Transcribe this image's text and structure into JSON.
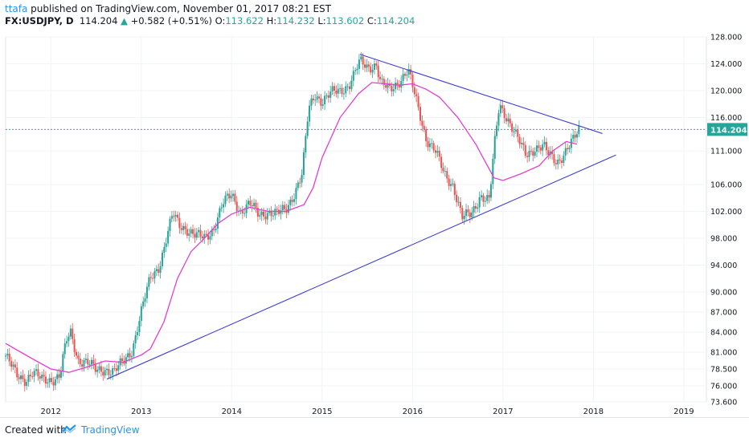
{
  "header": {
    "user": "ttafa",
    "published": "published on TradingView.com, November 01, 2017 08:21 EST",
    "symbol": "FX:USDJPY, D",
    "last": "114.204",
    "change_arrow": "▲",
    "change": "+0.582 (+0.51%)",
    "o_label": "O:",
    "o_value": "113.622",
    "h_label": "H:",
    "h_value": "114.232",
    "l_label": "L:",
    "l_value": "113.602",
    "c_label": "C:",
    "c_value": "114.204"
  },
  "footer": {
    "created": "Created with",
    "brand": "TradingView",
    "logo_icon": "tradingview-logo-icon"
  },
  "chart_data": {
    "type": "line",
    "title": "",
    "xlabel": "",
    "ylabel": "",
    "x_ticks": [
      "2012",
      "2013",
      "2014",
      "2015",
      "2016",
      "2017",
      "2018",
      "2019"
    ],
    "y_ticks": [
      "128.000",
      "124.000",
      "120.000",
      "116.000",
      "111.000",
      "106.000",
      "102.000",
      "98.000",
      "94.000",
      "90.000",
      "87.000",
      "84.000",
      "81.000",
      "78.500",
      "76.000",
      "73.600"
    ],
    "ylim": [
      73.6,
      128
    ],
    "xlim": [
      2011.5,
      2019.25
    ],
    "current_price_label": "114.204",
    "current_price": 114.204,
    "colors": {
      "up": "#26a69a",
      "down": "#ef5350",
      "ma": "#e040d0",
      "trend": "#3f3fcf",
      "price_line": "#26a69a"
    },
    "price_series": {
      "name": "",
      "x": [
        2011.5,
        2011.62,
        2011.72,
        2011.8,
        2011.9,
        2012.0,
        2012.1,
        2012.17,
        2012.22,
        2012.3,
        2012.4,
        2012.5,
        2012.6,
        2012.7,
        2012.8,
        2012.9,
        2013.0,
        2013.1,
        2013.2,
        2013.28,
        2013.35,
        2013.42,
        2013.5,
        2013.6,
        2013.7,
        2013.8,
        2013.9,
        2014.0,
        2014.1,
        2014.2,
        2014.3,
        2014.4,
        2014.5,
        2014.6,
        2014.7,
        2014.78,
        2014.85,
        2014.92,
        2015.0,
        2015.1,
        2015.2,
        2015.3,
        2015.42,
        2015.5,
        2015.6,
        2015.65,
        2015.75,
        2015.85,
        2015.95,
        2016.05,
        2016.15,
        2016.25,
        2016.35,
        2016.45,
        2016.55,
        2016.65,
        2016.75,
        2016.85,
        2016.9,
        2016.96,
        2017.05,
        2017.15,
        2017.25,
        2017.35,
        2017.45,
        2017.5,
        2017.6,
        2017.7,
        2017.78,
        2017.84
      ],
      "y": [
        80.5,
        77.5,
        77.0,
        78.0,
        76.8,
        77.0,
        77.5,
        82.5,
        83.8,
        80.0,
        79.5,
        78.2,
        78.6,
        78.0,
        79.5,
        81.5,
        87.0,
        92.0,
        94.0,
        98.0,
        101.5,
        100.0,
        99.5,
        98.3,
        98.0,
        99.5,
        103.0,
        104.5,
        102.0,
        103.0,
        101.5,
        102.0,
        101.5,
        102.3,
        105.0,
        107.5,
        117.0,
        119.5,
        118.5,
        119.5,
        120.0,
        121.0,
        124.2,
        123.5,
        124.0,
        121.0,
        120.0,
        121.5,
        123.0,
        118.0,
        113.0,
        111.0,
        107.5,
        106.0,
        101.0,
        101.5,
        104.5,
        103.5,
        111.0,
        118.0,
        116.0,
        113.0,
        110.5,
        111.5,
        111.5,
        110.5,
        109.5,
        111.0,
        112.5,
        114.204
      ]
    },
    "moving_average": {
      "name": "",
      "x": [
        2011.5,
        2011.8,
        2012.0,
        2012.2,
        2012.4,
        2012.6,
        2012.8,
        2013.0,
        2013.1,
        2013.25,
        2013.4,
        2013.55,
        2013.7,
        2013.85,
        2014.0,
        2014.2,
        2014.4,
        2014.6,
        2014.8,
        2014.9,
        2015.0,
        2015.2,
        2015.4,
        2015.55,
        2015.7,
        2015.85,
        2016.0,
        2016.15,
        2016.3,
        2016.5,
        2016.7,
        2016.8,
        2016.9,
        2017.0,
        2017.2,
        2017.4,
        2017.55,
        2017.7,
        2017.82
      ],
      "y": [
        82.3,
        80.0,
        78.5,
        78.0,
        78.8,
        79.7,
        79.5,
        80.6,
        81.5,
        85.5,
        92.0,
        96.0,
        98.0,
        100.2,
        101.6,
        102.6,
        102.0,
        102.0,
        103.0,
        105.5,
        110.0,
        116.0,
        119.5,
        121.2,
        121.0,
        120.8,
        121.0,
        120.2,
        119.0,
        116.0,
        112.0,
        109.5,
        107.0,
        106.6,
        107.6,
        108.8,
        111.0,
        112.4,
        112.0
      ]
    },
    "trendlines": [
      {
        "name": "",
        "x": [
          2012.62,
          2018.25
        ],
        "y": [
          77.0,
          110.4
        ]
      },
      {
        "name": "",
        "x": [
          2015.42,
          2018.1
        ],
        "y": [
          125.4,
          113.6
        ]
      }
    ]
  }
}
